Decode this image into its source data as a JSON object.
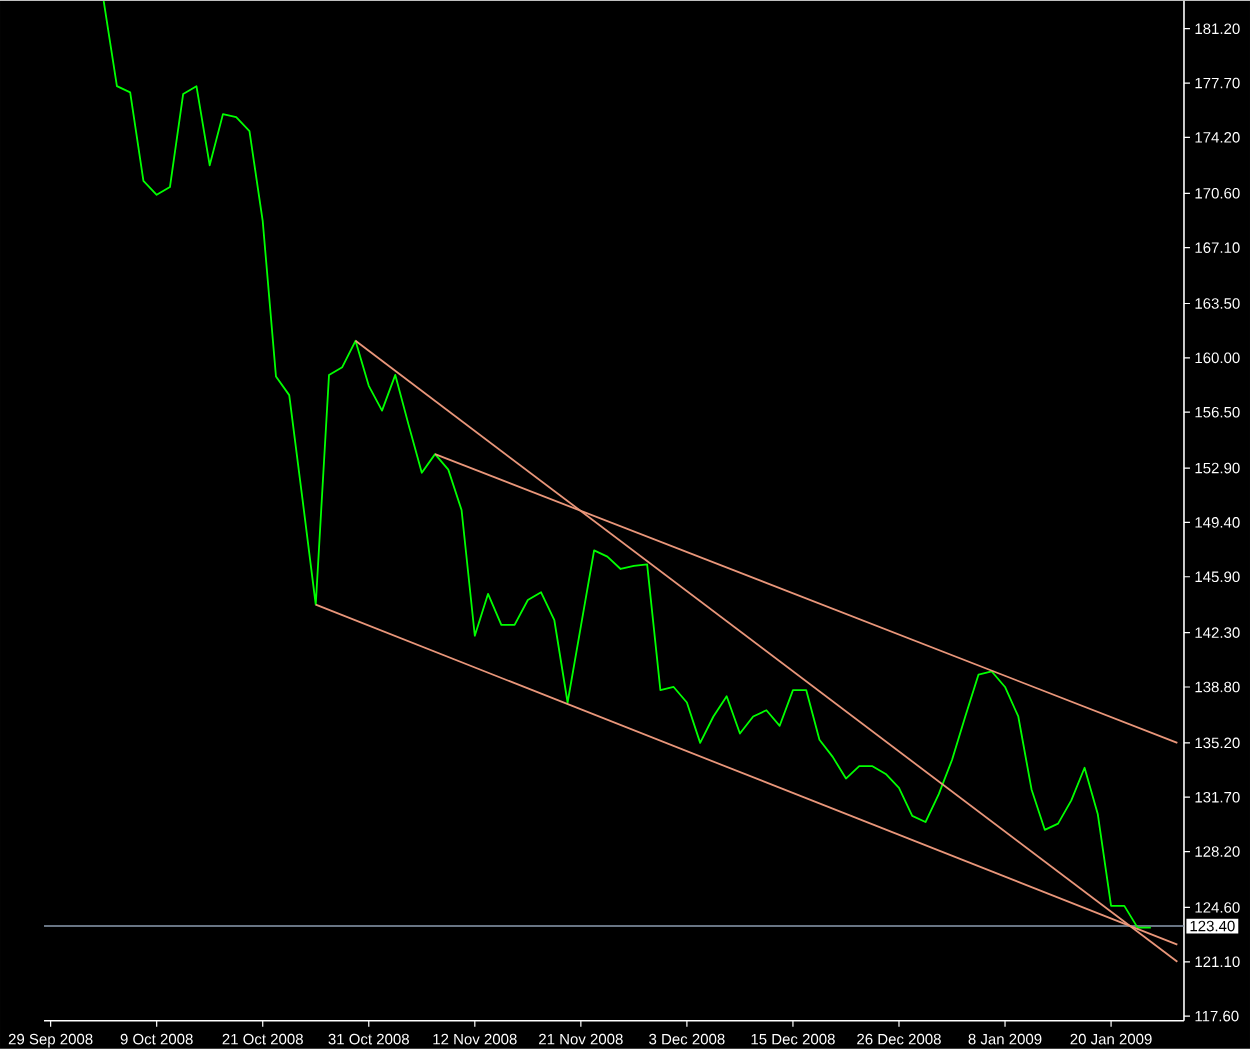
{
  "chart_data": {
    "type": "line",
    "categories": [
      "29 Sep 2008",
      null,
      null,
      null,
      null,
      null,
      null,
      null,
      "9 Oct 2008",
      null,
      null,
      null,
      null,
      null,
      null,
      null,
      "21 Oct 2008",
      null,
      null,
      null,
      null,
      null,
      null,
      null,
      "31 Oct 2008",
      null,
      null,
      null,
      null,
      null,
      null,
      null,
      "12 Nov 2008",
      null,
      null,
      null,
      null,
      null,
      null,
      null,
      "21 Nov 2008",
      null,
      null,
      null,
      null,
      null,
      null,
      null,
      "3 Dec 2008",
      null,
      null,
      null,
      null,
      null,
      null,
      null,
      "15 Dec 2008",
      null,
      null,
      null,
      null,
      null,
      null,
      null,
      "26 Dec 2008",
      null,
      null,
      null,
      null,
      null,
      null,
      null,
      "8 Jan 2009",
      null,
      null,
      null,
      null,
      null,
      null,
      null,
      "20 Jan 2009",
      null,
      null,
      null,
      null,
      null
    ],
    "series": [
      {
        "color": "#00ff00",
        "values": [
          null,
          null,
          null,
          null,
          183.0,
          177.5,
          177.1,
          171.4,
          170.5,
          171.0,
          177.0,
          177.5,
          172.4,
          175.7,
          175.5,
          174.6,
          168.8,
          158.8,
          157.6,
          150.9,
          144.1,
          158.9,
          159.4,
          161.1,
          158.2,
          156.6,
          158.9,
          155.7,
          152.6,
          153.8,
          152.8,
          150.2,
          142.1,
          144.8,
          142.8,
          142.8,
          144.4,
          144.9,
          143.1,
          137.8,
          142.7,
          147.6,
          147.2,
          146.4,
          146.6,
          146.7,
          138.6,
          138.8,
          137.8,
          135.2,
          136.9,
          138.2,
          135.8,
          136.9,
          137.3,
          136.3,
          138.6,
          138.6,
          135.4,
          134.3,
          132.9,
          133.7,
          133.7,
          133.2,
          132.3,
          130.5,
          130.1,
          131.9,
          134.1,
          136.9,
          139.6,
          139.8,
          138.8,
          136.9,
          132.2,
          129.6,
          130.0,
          131.5,
          133.6,
          130.6,
          124.7,
          124.7,
          123.3,
          123.3,
          null,
          null
        ]
      },
      {
        "type": "line",
        "color": "#e9967a",
        "values": [
          null,
          null,
          null,
          null,
          null,
          null,
          null,
          null,
          null,
          null,
          null,
          null,
          null,
          null,
          null,
          null,
          null,
          null,
          null,
          null,
          null,
          null,
          null,
          161.1,
          null,
          null,
          null,
          null,
          null,
          null,
          null,
          null,
          null,
          null,
          null,
          null,
          null,
          null,
          null,
          null,
          null,
          null,
          null,
          null,
          null,
          null,
          null,
          null,
          null,
          null,
          null,
          null,
          null,
          null,
          null,
          null,
          null,
          null,
          null,
          null,
          null,
          null,
          null,
          null,
          null,
          null,
          null,
          null,
          null,
          null,
          null,
          null,
          null,
          null,
          null,
          null,
          null,
          null,
          null,
          null,
          null,
          null,
          null,
          null,
          null,
          121.1
        ]
      },
      {
        "type": "line",
        "color": "#e9967a",
        "values": [
          null,
          null,
          null,
          null,
          null,
          null,
          null,
          null,
          null,
          null,
          null,
          null,
          null,
          null,
          null,
          null,
          null,
          null,
          null,
          null,
          null,
          null,
          null,
          null,
          null,
          null,
          null,
          null,
          null,
          153.8,
          null,
          null,
          null,
          null,
          null,
          null,
          null,
          null,
          null,
          null,
          null,
          null,
          null,
          null,
          null,
          null,
          null,
          null,
          null,
          null,
          null,
          null,
          null,
          null,
          null,
          null,
          null,
          null,
          null,
          null,
          null,
          null,
          null,
          null,
          null,
          null,
          null,
          null,
          null,
          null,
          null,
          null,
          null,
          null,
          null,
          null,
          null,
          null,
          null,
          null,
          null,
          null,
          null,
          null,
          null,
          135.2
        ]
      },
      {
        "type": "line",
        "color": "#e9967a",
        "values": [
          null,
          null,
          null,
          null,
          null,
          null,
          null,
          null,
          null,
          null,
          null,
          null,
          null,
          null,
          null,
          null,
          null,
          null,
          null,
          null,
          144.1,
          null,
          null,
          null,
          null,
          null,
          null,
          null,
          null,
          null,
          null,
          null,
          null,
          null,
          null,
          null,
          null,
          null,
          null,
          null,
          null,
          null,
          null,
          null,
          null,
          null,
          null,
          null,
          null,
          null,
          null,
          null,
          null,
          null,
          null,
          null,
          null,
          null,
          null,
          null,
          null,
          null,
          null,
          null,
          null,
          null,
          null,
          null,
          null,
          null,
          null,
          null,
          null,
          null,
          null,
          null,
          null,
          null,
          null,
          null,
          null,
          null,
          null,
          null,
          null,
          122.2
        ]
      }
    ],
    "ylim": [
      117.3,
      183.0
    ],
    "yticks": [
      {
        "value": 181.2,
        "label": "181.20"
      },
      {
        "value": 177.7,
        "label": "177.70"
      },
      {
        "value": 174.2,
        "label": "174.20"
      },
      {
        "value": 170.6,
        "label": "170.60"
      },
      {
        "value": 167.1,
        "label": "167.10"
      },
      {
        "value": 163.5,
        "label": "163.50"
      },
      {
        "value": 160.0,
        "label": "160.00"
      },
      {
        "value": 156.5,
        "label": "156.50"
      },
      {
        "value": 152.9,
        "label": "152.90"
      },
      {
        "value": 149.4,
        "label": "149.40"
      },
      {
        "value": 145.9,
        "label": "145.90"
      },
      {
        "value": 142.3,
        "label": "142.30"
      },
      {
        "value": 138.8,
        "label": "138.80"
      },
      {
        "value": 135.2,
        "label": "135.20"
      },
      {
        "value": 131.7,
        "label": "131.70"
      },
      {
        "value": 128.2,
        "label": "128.20"
      },
      {
        "value": 124.6,
        "label": "124.60"
      },
      {
        "value": 121.1,
        "label": "121.10"
      },
      {
        "value": 117.6,
        "label": "117.60"
      }
    ],
    "ref_lines": [
      {
        "axis": "y",
        "value": 123.4,
        "label": "123.40",
        "color": "#8c9cb0"
      }
    ]
  }
}
